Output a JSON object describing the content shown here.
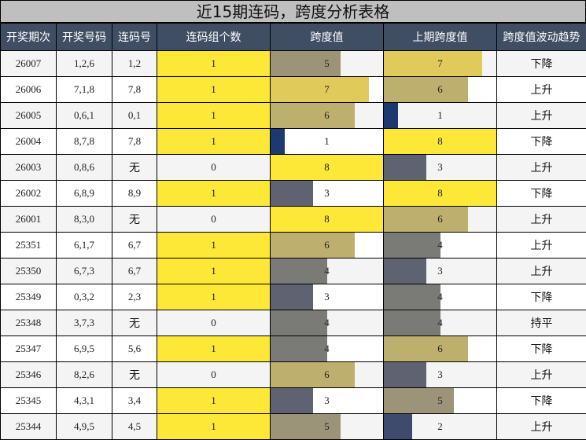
{
  "title": "近15期连码，跨度分析表格",
  "headers": [
    "开奖期次",
    "开奖号码",
    "连码号",
    "连码组个数",
    "跨度值",
    "上期跨度值",
    "跨度值波动趋势"
  ],
  "span_max": 8,
  "span_colors": {
    "1": "#1c3a70",
    "2": "#3e4b6c",
    "3": "#5f6271",
    "4": "#7a7a76",
    "5": "#9c9478",
    "6": "#bdb06e",
    "7": "#e0cb5a",
    "8": "#fde837"
  },
  "rows": [
    {
      "issue": "26007",
      "numbers": "1,2,6",
      "consecutive": "1,2",
      "groups": "1",
      "span": "5",
      "prev_span": "7",
      "trend": "下降"
    },
    {
      "issue": "26006",
      "numbers": "7,1,8",
      "consecutive": "7,8",
      "groups": "1",
      "span": "7",
      "prev_span": "6",
      "trend": "上升"
    },
    {
      "issue": "26005",
      "numbers": "0,6,1",
      "consecutive": "0,1",
      "groups": "1",
      "span": "6",
      "prev_span": "1",
      "trend": "上升"
    },
    {
      "issue": "26004",
      "numbers": "8,7,8",
      "consecutive": "7,8",
      "groups": "1",
      "span": "1",
      "prev_span": "8",
      "trend": "下降"
    },
    {
      "issue": "26003",
      "numbers": "0,8,6",
      "consecutive": "无",
      "groups": "0",
      "span": "8",
      "prev_span": "3",
      "trend": "上升"
    },
    {
      "issue": "26002",
      "numbers": "6,8,9",
      "consecutive": "8,9",
      "groups": "1",
      "span": "3",
      "prev_span": "8",
      "trend": "下降"
    },
    {
      "issue": "26001",
      "numbers": "8,3,0",
      "consecutive": "无",
      "groups": "0",
      "span": "8",
      "prev_span": "6",
      "trend": "上升"
    },
    {
      "issue": "25351",
      "numbers": "6,1,7",
      "consecutive": "6,7",
      "groups": "1",
      "span": "6",
      "prev_span": "4",
      "trend": "上升"
    },
    {
      "issue": "25350",
      "numbers": "6,7,3",
      "consecutive": "6,7",
      "groups": "1",
      "span": "4",
      "prev_span": "3",
      "trend": "上升"
    },
    {
      "issue": "25349",
      "numbers": "0,3,2",
      "consecutive": "2,3",
      "groups": "1",
      "span": "3",
      "prev_span": "4",
      "trend": "下降"
    },
    {
      "issue": "25348",
      "numbers": "3,7,3",
      "consecutive": "无",
      "groups": "0",
      "span": "4",
      "prev_span": "4",
      "trend": "持平"
    },
    {
      "issue": "25347",
      "numbers": "6,9,5",
      "consecutive": "5,6",
      "groups": "1",
      "span": "4",
      "prev_span": "6",
      "trend": "下降"
    },
    {
      "issue": "25346",
      "numbers": "8,2,6",
      "consecutive": "无",
      "groups": "0",
      "span": "6",
      "prev_span": "3",
      "trend": "上升"
    },
    {
      "issue": "25345",
      "numbers": "4,3,1",
      "consecutive": "3,4",
      "groups": "1",
      "span": "3",
      "prev_span": "5",
      "trend": "下降"
    },
    {
      "issue": "25344",
      "numbers": "4,9,5",
      "consecutive": "4,5",
      "groups": "1",
      "span": "5",
      "prev_span": "2",
      "trend": "上升"
    }
  ]
}
